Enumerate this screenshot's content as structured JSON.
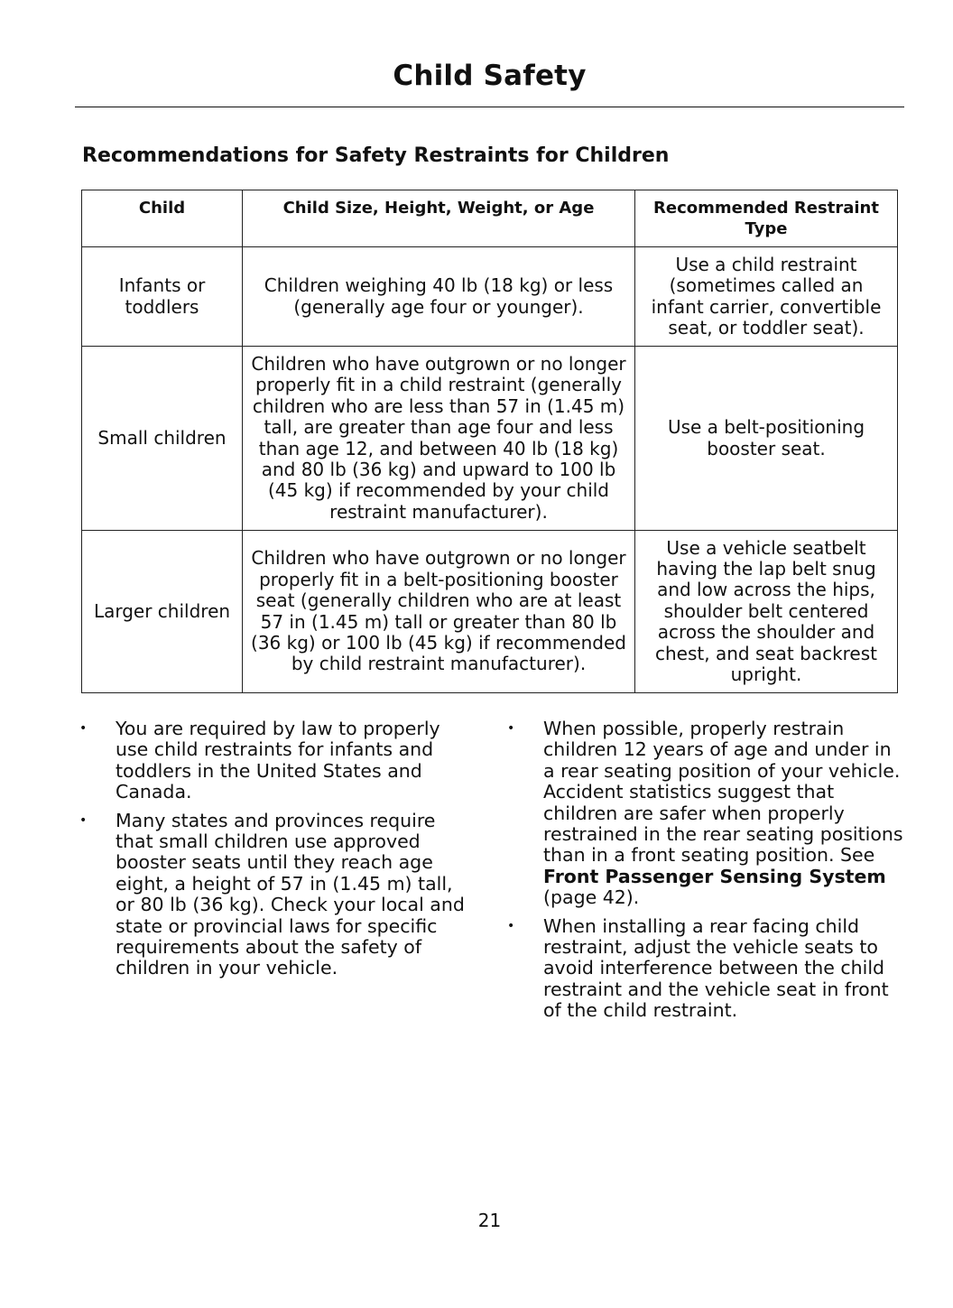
{
  "header": {
    "title": "Child Safety"
  },
  "section": {
    "heading": "Recommendations for Safety Restraints for Children"
  },
  "table": {
    "columns": [
      "Child",
      "Child Size, Height, Weight, or Age",
      "Recommended Restraint Type"
    ],
    "rows": [
      [
        "Infants or toddlers",
        "Children weighing 40 lb (18 kg) or less (generally age four or younger).",
        "Use a child restraint (sometimes called an infant carrier, convertible seat, or toddler seat)."
      ],
      [
        "Small children",
        "Children who have outgrown or no longer properly fit in a child restraint (generally children who are less than 57 in (1.45 m) tall, are greater than age four and less than age 12, and between 40 lb (18 kg) and 80 lb (36 kg) and upward to 100 lb (45 kg) if recommended by your child restraint manufacturer).",
        "Use a belt-positioning booster seat."
      ],
      [
        "Larger children",
        "Children who have outgrown or no longer properly fit in a belt-positioning booster seat (generally children who are at least 57 in (1.45 m) tall or greater than 80 lb (36 kg) or 100 lb (45 kg) if recommended by child restraint manufacturer).",
        "Use a vehicle seatbelt having the lap belt snug and low across the hips, shoulder belt centered across the shoulder and chest, and seat backrest upright."
      ]
    ]
  },
  "bullets": {
    "symbol": "•",
    "left": [
      "You are required by law to properly use child restraints for infants and toddlers in the United States and Canada.",
      "Many states and provinces require that small children use approved booster seats until they reach age eight, a height of 57 in (1.45 m) tall, or 80 lb (36 kg). Check your local and state or provincial laws for specific requirements about the safety of children in your vehicle."
    ],
    "right": [
      {
        "text": "When possible, properly restrain children 12 years of age and under in a rear seating position of your vehicle. Accident statistics suggest that children are safer when properly restrained in the rear seating positions than in a front seating position.  See ",
        "link": "Front Passenger Sensing System",
        "after": " (page 42)."
      },
      {
        "text": "When installing a rear facing child restraint, adjust the vehicle seats to avoid interference between the child restraint and the vehicle seat in front of the child restraint."
      }
    ]
  },
  "footer": {
    "page_number": "21"
  }
}
